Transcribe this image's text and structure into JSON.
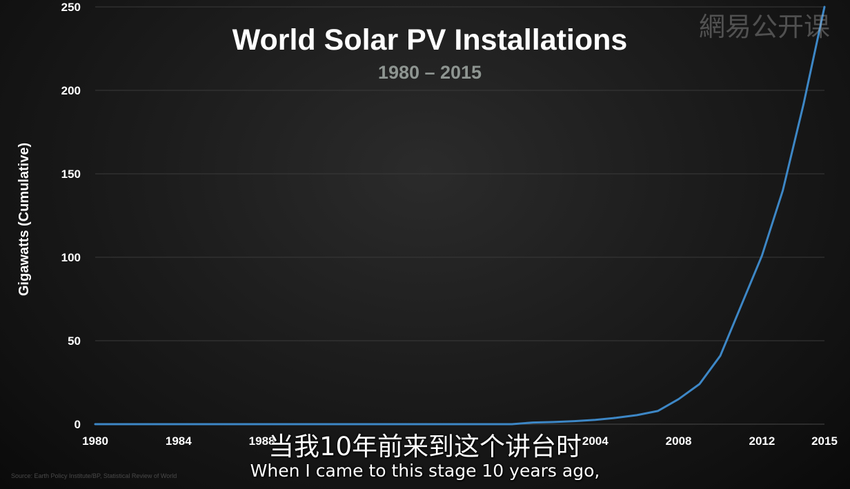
{
  "chart_data": {
    "type": "line",
    "title": "World Solar PV Installations",
    "subtitle": "1980 – 2015",
    "xlabel": "",
    "ylabel": "Gigawatts (Cumulative)",
    "xlim": [
      1980,
      2015
    ],
    "ylim": [
      0,
      250
    ],
    "x_ticks": [
      "1980",
      "1984",
      "1988",
      "2004",
      "2008",
      "2012",
      "2015"
    ],
    "y_ticks": [
      "250",
      "200",
      "150",
      "100",
      "50",
      "0"
    ],
    "grid": true,
    "series": [
      {
        "color": "#3d87c6",
        "x": [
          1980,
          1981,
          1982,
          1983,
          1984,
          1985,
          1986,
          1987,
          1988,
          1989,
          1990,
          1991,
          1992,
          1993,
          1994,
          1995,
          1996,
          1997,
          1998,
          1999,
          2000,
          2001,
          2002,
          2003,
          2004,
          2005,
          2006,
          2007,
          2008,
          2009,
          2010,
          2011,
          2012,
          2013,
          2014,
          2015
        ],
        "y": [
          0,
          0,
          0,
          0,
          0,
          0,
          0,
          0,
          0,
          0,
          0,
          0,
          0,
          0,
          0,
          0,
          0,
          0,
          0,
          0,
          0,
          1,
          1.3,
          1.8,
          2.6,
          3.8,
          5.4,
          7.9,
          15,
          24,
          41,
          71,
          101,
          140,
          192,
          250
        ]
      }
    ]
  },
  "watermark": "網易公开课",
  "source_note": "Source: Earth Policy Institute/BP, Statistical Review of World",
  "captions": {
    "chinese": "当我10年前来到这个讲台时",
    "english": "When I came to this stage 10 years ago,"
  }
}
